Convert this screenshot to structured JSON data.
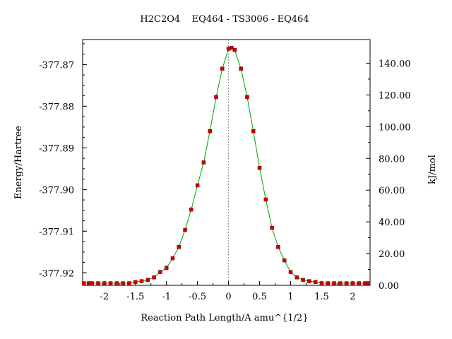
{
  "chart_data": {
    "type": "line",
    "title": "H2C2O4    EQ464 - TS3006 - EQ464",
    "xlabel": "Reaction Path Length/A amu^{1/2}",
    "ylabel_left": "Energy/Hartree",
    "ylabel_right": "kJ/mol",
    "xlim": [
      -2.35,
      2.28
    ],
    "ylim_left": [
      -377.923,
      -377.864
    ],
    "ylim_right": [
      0,
      154.9
    ],
    "x_ticks": [
      -2,
      -1.5,
      -1,
      -0.5,
      0,
      0.5,
      1,
      1.5,
      2
    ],
    "x_tick_labels": [
      "-2",
      "-1.5",
      "-1",
      "-0.5",
      "0",
      "0.5",
      "1",
      "1.5",
      "2"
    ],
    "y_left_ticks": [
      -377.87,
      -377.88,
      -377.89,
      -377.9,
      -377.91,
      -377.92
    ],
    "y_left_tick_labels": [
      "-377.87",
      "-377.88",
      "-377.89",
      "-377.90",
      "-377.91",
      "-377.92"
    ],
    "y_right_ticks": [
      0,
      20,
      40,
      60,
      80,
      100,
      120,
      140
    ],
    "y_right_tick_labels": [
      "0.00",
      "20.00",
      "40.00",
      "60.00",
      "80.00",
      "100.00",
      "120.00",
      "140.00"
    ],
    "ts_marker_x": 0,
    "grid": false,
    "series": [
      {
        "color": "#00a000",
        "marker_color": "#cc0000",
        "x": [
          -2.33,
          -2.25,
          -2.2,
          -2.1,
          -2.0,
          -1.9,
          -1.8,
          -1.7,
          -1.6,
          -1.5,
          -1.4,
          -1.3,
          -1.2,
          -1.1,
          -1.0,
          -0.9,
          -0.8,
          -0.7,
          -0.6,
          -0.5,
          -0.4,
          -0.3,
          -0.2,
          -0.1,
          0.0,
          0.05,
          0.1,
          0.2,
          0.3,
          0.4,
          0.5,
          0.6,
          0.7,
          0.8,
          0.9,
          1.0,
          1.1,
          1.2,
          1.3,
          1.4,
          1.5,
          1.6,
          1.7,
          1.8,
          1.9,
          2.0,
          2.1,
          2.2,
          2.25
        ],
        "y": [
          -377.9225,
          -377.9225,
          -377.9225,
          -377.9225,
          -377.9225,
          -377.9225,
          -377.9225,
          -377.9225,
          -377.9225,
          -377.9222,
          -377.922,
          -377.9217,
          -377.9211,
          -377.9198,
          -377.9188,
          -377.9165,
          -377.9138,
          -377.9097,
          -377.9048,
          -377.899,
          -377.8935,
          -377.886,
          -377.8778,
          -377.871,
          -377.8662,
          -377.866,
          -377.8665,
          -377.871,
          -377.8778,
          -377.886,
          -377.8948,
          -377.9024,
          -377.9092,
          -377.9138,
          -377.917,
          -377.9198,
          -377.9211,
          -377.9217,
          -377.922,
          -377.9222,
          -377.9225,
          -377.9225,
          -377.9225,
          -377.9225,
          -377.9225,
          -377.9225,
          -377.9225,
          -377.9225,
          -377.9225
        ]
      }
    ]
  }
}
